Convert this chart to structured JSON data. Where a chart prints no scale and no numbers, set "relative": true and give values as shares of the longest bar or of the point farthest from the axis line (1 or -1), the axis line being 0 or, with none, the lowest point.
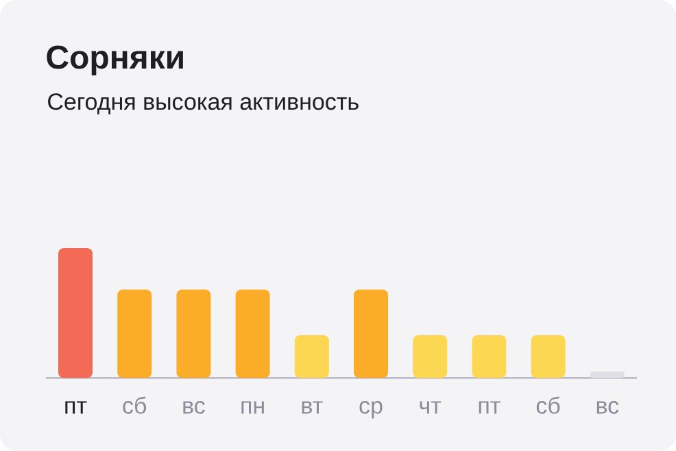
{
  "chart_data": {
    "type": "bar",
    "title": "Сорняки",
    "subtitle": "Сегодня высокая активность",
    "categories": [
      "пт",
      "сб",
      "вс",
      "пн",
      "вт",
      "ср",
      "чт",
      "пт",
      "сб",
      "вс"
    ],
    "values": [
      1,
      0.68,
      0.68,
      0.68,
      0.33,
      0.68,
      0.33,
      0.33,
      0.33,
      0.05
    ],
    "colors": [
      "#f36b56",
      "#fbad2a",
      "#fbad2a",
      "#fbad2a",
      "#fcd852",
      "#fbad2a",
      "#fcd852",
      "#fcd852",
      "#fcd852",
      "#dfdfe6"
    ],
    "relative": true
  }
}
